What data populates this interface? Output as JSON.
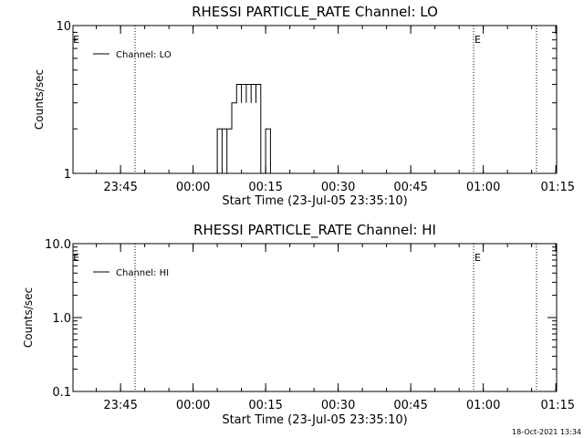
{
  "chart_data": [
    {
      "type": "line",
      "title": "RHESSI PARTICLE_RATE Channel: LO",
      "xlabel": "Start Time (23-Jul-05 23:35:10)",
      "ylabel": "Counts/sec",
      "y_scale": "log",
      "ylim": [
        1,
        10
      ],
      "y_ticks": [
        "1",
        "10"
      ],
      "x_range_minutes_since_start": [
        0,
        100
      ],
      "x_ticks": [
        {
          "label": "23:45",
          "at": "23:45"
        },
        {
          "label": "00:00",
          "at": "00:00"
        },
        {
          "label": "00:15",
          "at": "00:15"
        },
        {
          "label": "00:30",
          "at": "00:30"
        },
        {
          "label": "00:45",
          "at": "00:45"
        },
        {
          "label": "01:00",
          "at": "01:00"
        },
        {
          "label": "01:15",
          "at": "01:15"
        }
      ],
      "legend": {
        "position": "top-left",
        "entries": [
          "Channel: LO"
        ]
      },
      "event_markers": [
        {
          "label": "E",
          "time": "23:35"
        },
        {
          "label": "",
          "time": "23:48"
        },
        {
          "label": "E",
          "time": "00:58"
        },
        {
          "label": "",
          "time": "01:11"
        }
      ],
      "series": [
        {
          "name": "Channel: LO",
          "points": [
            [
              "00:05",
              1
            ],
            [
              "00:05",
              2
            ],
            [
              "00:06",
              2
            ],
            [
              "00:06",
              1
            ],
            [
              "00:06",
              2
            ],
            [
              "00:07",
              2
            ],
            [
              "00:07",
              1
            ],
            [
              "00:07",
              2
            ],
            [
              "00:08",
              2
            ],
            [
              "00:08",
              3
            ],
            [
              "00:09",
              3
            ],
            [
              "00:09",
              4
            ],
            [
              "00:10",
              4
            ],
            [
              "00:10",
              3
            ],
            [
              "00:10",
              4
            ],
            [
              "00:11",
              4
            ],
            [
              "00:11",
              3
            ],
            [
              "00:11",
              4
            ],
            [
              "00:12",
              4
            ],
            [
              "00:12",
              3
            ],
            [
              "00:12",
              4
            ],
            [
              "00:13",
              4
            ],
            [
              "00:13",
              3
            ],
            [
              "00:13",
              4
            ],
            [
              "00:14",
              4
            ],
            [
              "00:14",
              3
            ],
            [
              "00:14",
              1
            ],
            [
              "00:15",
              1
            ],
            [
              "00:15",
              2
            ],
            [
              "00:16",
              2
            ],
            [
              "00:16",
              1
            ]
          ]
        }
      ]
    },
    {
      "type": "line",
      "title": "RHESSI PARTICLE_RATE Channel: HI",
      "xlabel": "Start Time (23-Jul-05 23:35:10)",
      "ylabel": "Counts/sec",
      "y_scale": "log",
      "ylim": [
        0.1,
        10
      ],
      "y_ticks": [
        "0.1",
        "1.0",
        "10.0"
      ],
      "x_range_minutes_since_start": [
        0,
        100
      ],
      "x_ticks": [
        {
          "label": "23:45",
          "at": "23:45"
        },
        {
          "label": "00:00",
          "at": "00:00"
        },
        {
          "label": "00:15",
          "at": "00:15"
        },
        {
          "label": "00:30",
          "at": "00:30"
        },
        {
          "label": "00:45",
          "at": "00:45"
        },
        {
          "label": "01:00",
          "at": "01:00"
        },
        {
          "label": "01:15",
          "at": "01:15"
        }
      ],
      "legend": {
        "position": "top-left",
        "entries": [
          "Channel: HI"
        ]
      },
      "event_markers": [
        {
          "label": "E",
          "time": "23:35"
        },
        {
          "label": "",
          "time": "23:48"
        },
        {
          "label": "E",
          "time": "00:58"
        },
        {
          "label": "",
          "time": "01:11"
        }
      ],
      "series": [
        {
          "name": "Channel: HI",
          "points": []
        }
      ]
    }
  ],
  "footer": {
    "timestamp": "18-Oct-2021 13:34"
  }
}
